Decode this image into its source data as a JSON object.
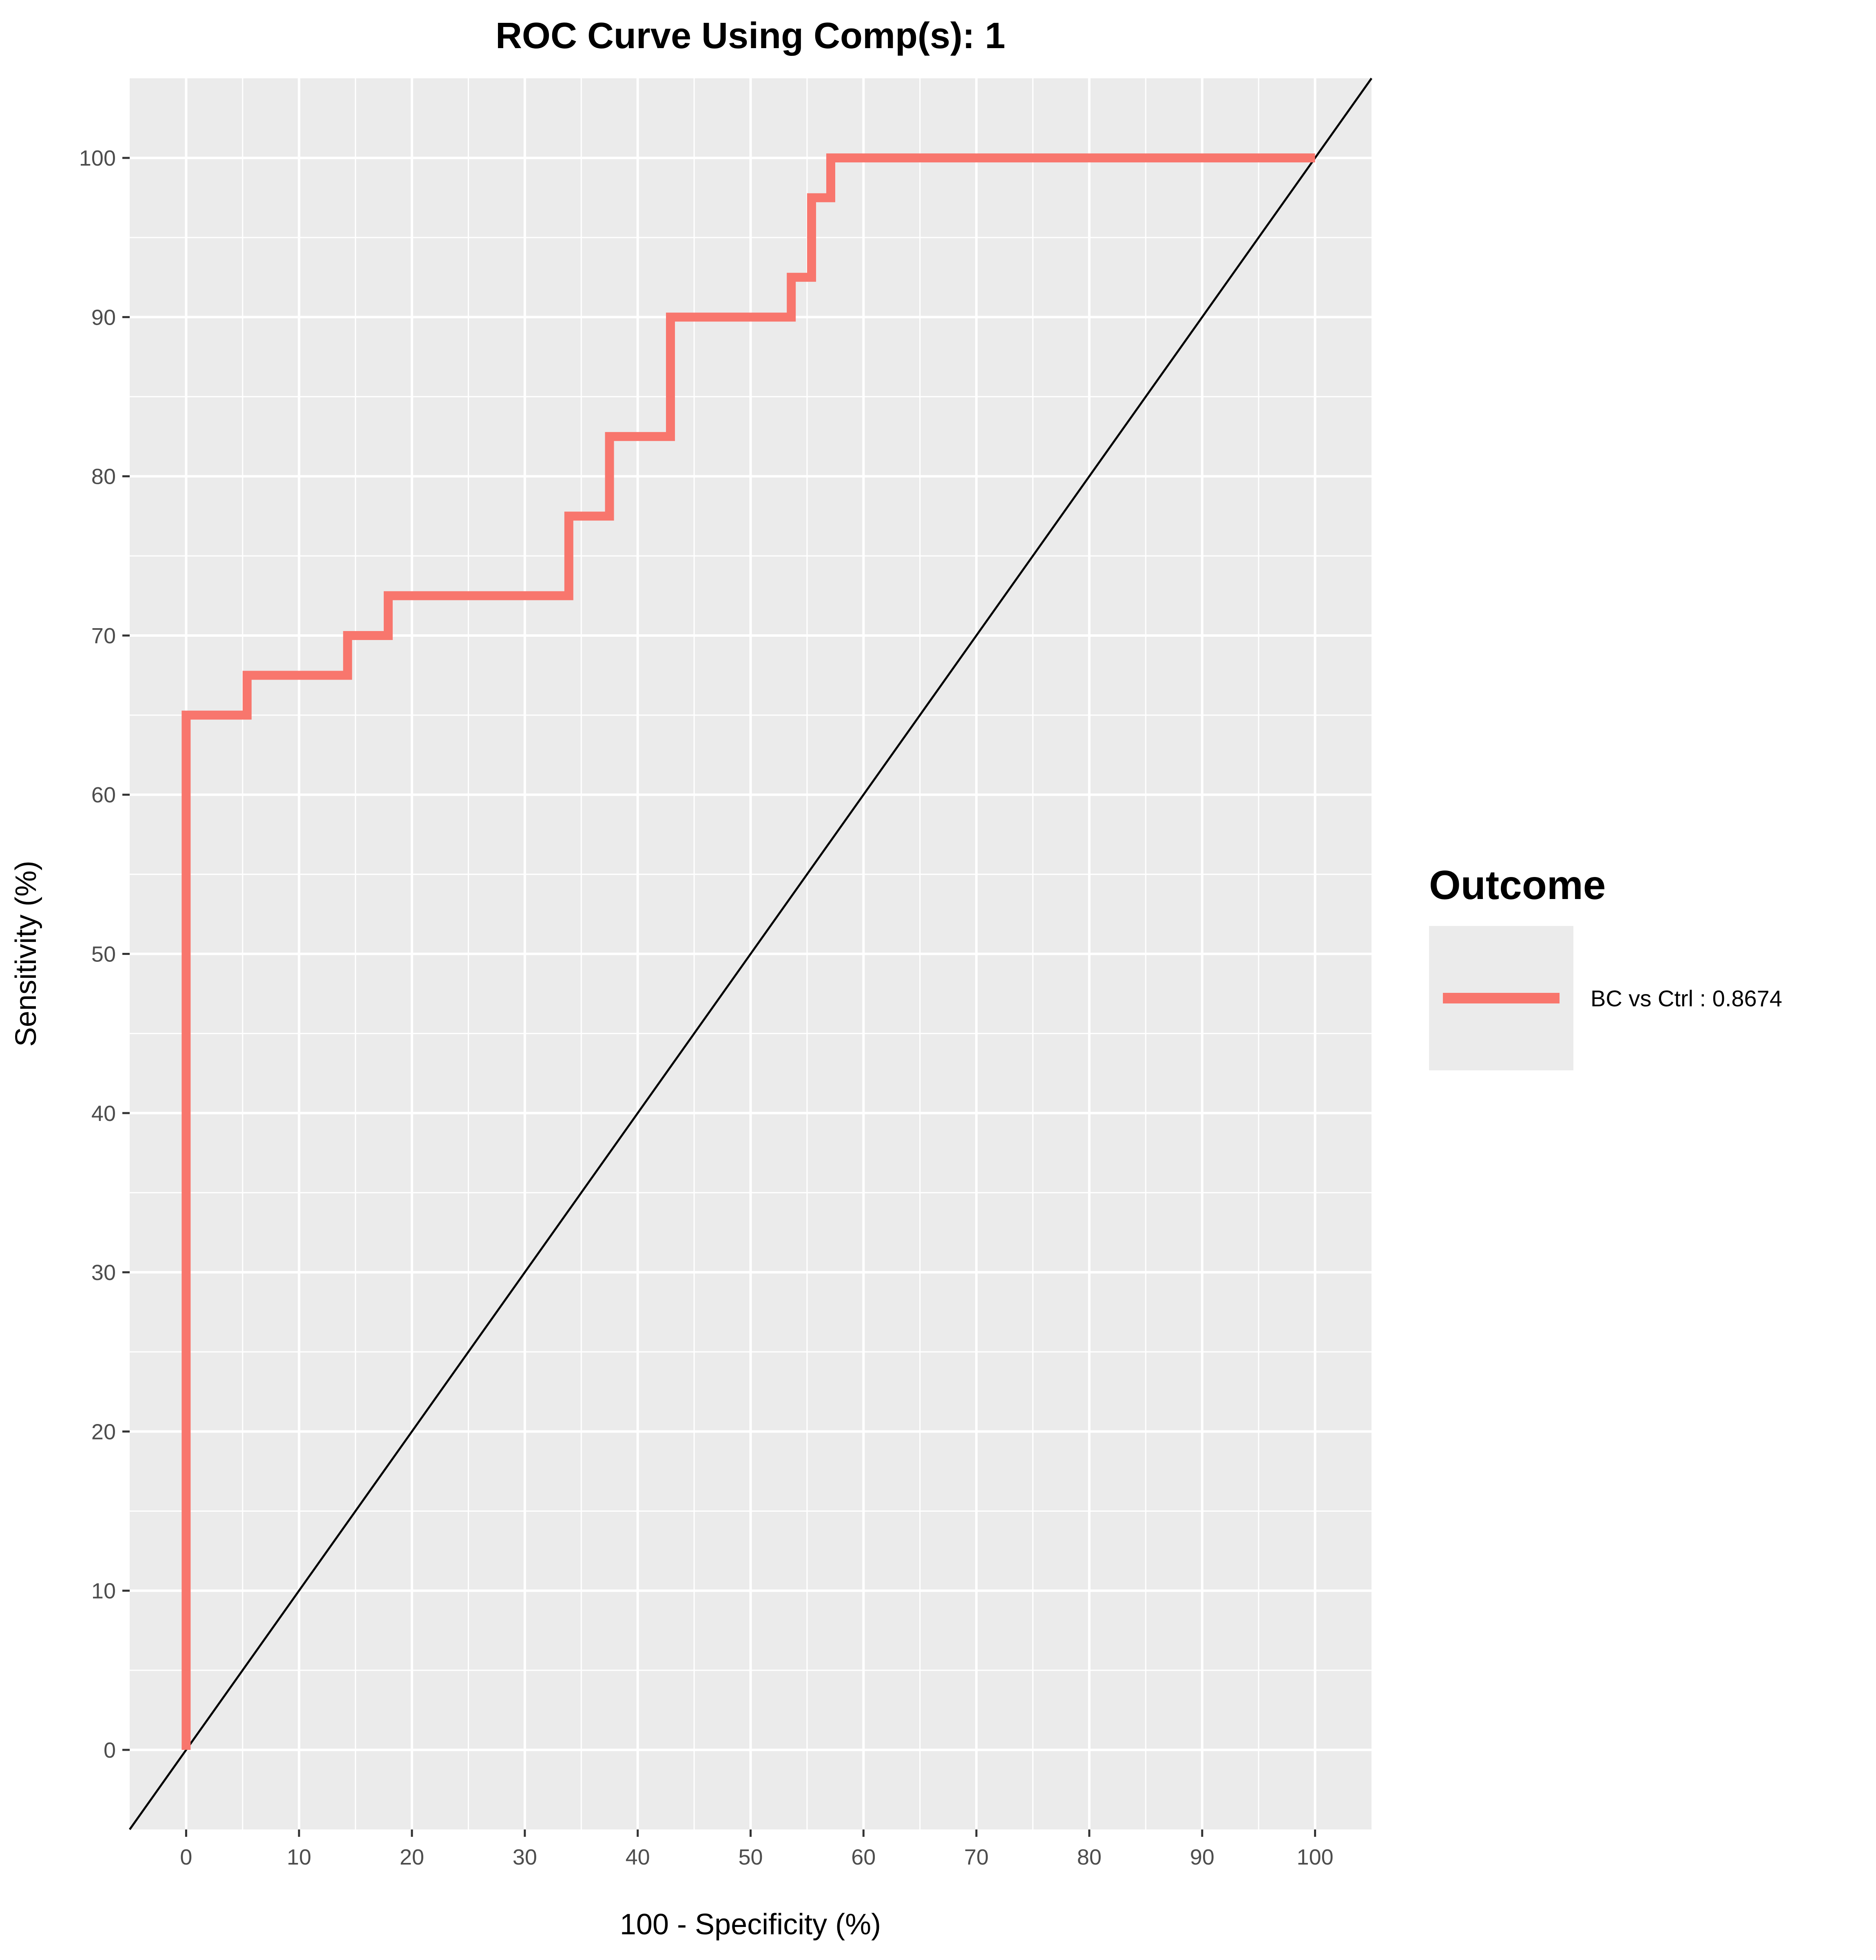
{
  "chart_data": {
    "type": "line",
    "title": "ROC Curve Using Comp(s): 1",
    "xlabel": "100 - Specificity (%)",
    "ylabel": "Sensitivity (%)",
    "xlim": [
      -5,
      105
    ],
    "ylim": [
      -5,
      105
    ],
    "xticks": [
      0,
      10,
      20,
      30,
      40,
      50,
      60,
      70,
      80,
      90,
      100
    ],
    "yticks": [
      0,
      10,
      20,
      30,
      40,
      50,
      60,
      70,
      80,
      90,
      100
    ],
    "grid": true,
    "background": "#EBEBEB",
    "legend": {
      "title": "Outcome",
      "position": "right",
      "entries": [
        "BC vs Ctrl : 0.8674"
      ]
    },
    "series": [
      {
        "name": "BC vs Ctrl : 0.8674",
        "color": "#F8766D",
        "step": true,
        "x": [
          0,
          0,
          5.4,
          5.4,
          14.3,
          14.3,
          17.9,
          17.9,
          33.9,
          33.9,
          37.5,
          37.5,
          42.9,
          42.9,
          53.6,
          53.6,
          55.4,
          55.4,
          57.1,
          57.1,
          100
        ],
        "y": [
          0,
          65,
          65,
          67.5,
          67.5,
          70,
          70,
          72.5,
          72.5,
          77.5,
          77.5,
          82.5,
          82.5,
          90,
          90,
          92.5,
          92.5,
          97.5,
          97.5,
          100,
          100
        ]
      }
    ],
    "reference_line": {
      "name": "diagonal",
      "color": "#000000",
      "slope": 1,
      "intercept": 0
    }
  }
}
